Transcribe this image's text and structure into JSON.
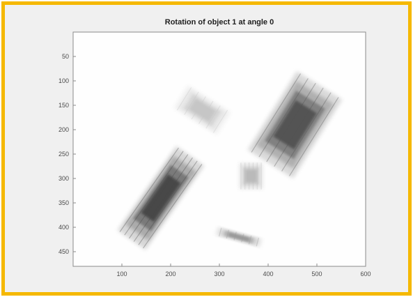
{
  "window": {
    "frame_color": "#f5b800",
    "background_color": "#f0f0f0"
  },
  "chart_data": {
    "type": "heatmap",
    "title": "Rotation of object 1 at angle 0",
    "xlabel": "",
    "ylabel": "",
    "xlim": [
      0,
      600
    ],
    "ylim": [
      480,
      0
    ],
    "x_ticks": [
      100,
      200,
      300,
      400,
      500,
      600
    ],
    "y_ticks": [
      50,
      100,
      150,
      200,
      250,
      300,
      350,
      400,
      450
    ],
    "colormap": "inverted-gray",
    "grid": false,
    "image_blobs": [
      {
        "name": "upper-left-light-box",
        "shade": 0.25,
        "center": [
          265,
          160
        ],
        "angle": 32,
        "extent": [
          105,
          55
        ]
      },
      {
        "name": "right-dark-box",
        "shade": 0.75,
        "center": [
          455,
          190
        ],
        "angle": 32,
        "extent": [
          110,
          190
        ]
      },
      {
        "name": "lower-left-dark-streak",
        "shade": 0.8,
        "center": [
          180,
          340
        ],
        "angle": 35,
        "extent": [
          70,
          210
        ]
      },
      {
        "name": "middle-small-box",
        "shade": 0.3,
        "center": [
          365,
          295
        ],
        "angle": 0,
        "extent": [
          50,
          55
        ]
      },
      {
        "name": "bottom-small-streak",
        "shade": 0.45,
        "center": [
          340,
          420
        ],
        "angle": 15,
        "extent": [
          95,
          18
        ]
      }
    ]
  }
}
